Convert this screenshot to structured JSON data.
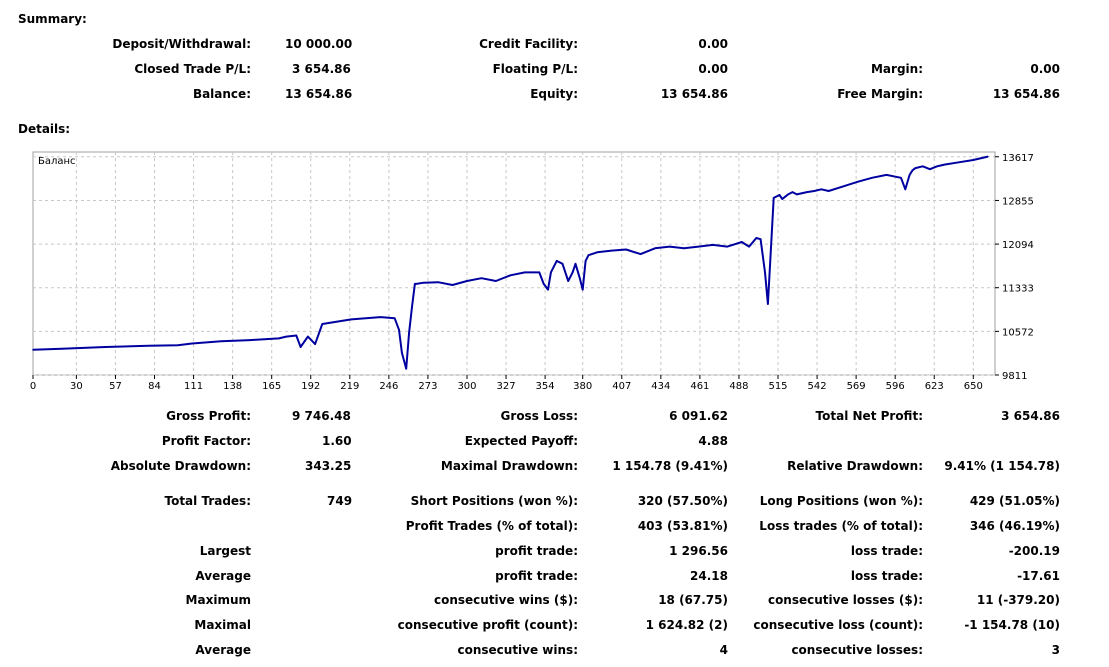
{
  "summary": {
    "heading": "Summary:",
    "deposit_label": "Deposit/Withdrawal:",
    "deposit_value": "10 000.00",
    "credit_label": "Credit Facility:",
    "credit_value": "0.00",
    "closed_pl_label": "Closed Trade P/L:",
    "closed_pl_value": "3 654.86",
    "floating_pl_label": "Floating P/L:",
    "floating_pl_value": "0.00",
    "margin_label": "Margin:",
    "margin_value": "0.00",
    "balance_label": "Balance:",
    "balance_value": "13 654.86",
    "equity_label": "Equity:",
    "equity_value": "13 654.86",
    "free_margin_label": "Free Margin:",
    "free_margin_value": "13 654.86"
  },
  "details": {
    "heading": "Details:",
    "gross_profit_label": "Gross Profit:",
    "gross_profit_value": "9 746.48",
    "gross_loss_label": "Gross Loss:",
    "gross_loss_value": "6 091.62",
    "total_net_profit_label": "Total Net Profit:",
    "total_net_profit_value": "3 654.86",
    "profit_factor_label": "Profit Factor:",
    "profit_factor_value": "1.60",
    "expected_payoff_label": "Expected Payoff:",
    "expected_payoff_value": "4.88",
    "absolute_drawdown_label": "Absolute Drawdown:",
    "absolute_drawdown_value": "343.25",
    "maximal_drawdown_label": "Maximal Drawdown:",
    "maximal_drawdown_value": "1 154.78 (9.41%)",
    "relative_drawdown_label": "Relative Drawdown:",
    "relative_drawdown_value": "9.41% (1 154.78)",
    "total_trades_label": "Total Trades:",
    "total_trades_value": "749",
    "short_positions_label": "Short Positions (won %):",
    "short_positions_value": "320 (57.50%)",
    "long_positions_label": "Long Positions (won %):",
    "long_positions_value": "429 (51.05%)",
    "profit_trades_label": "Profit Trades (% of total):",
    "profit_trades_value": "403 (53.81%)",
    "loss_trades_label": "Loss trades (% of total):",
    "loss_trades_value": "346 (46.19%)",
    "rows": [
      {
        "group": "Largest",
        "p_label": "profit trade:",
        "p_value": "1 296.56",
        "l_label": "loss trade:",
        "l_value": "-200.19"
      },
      {
        "group": "Average",
        "p_label": "profit trade:",
        "p_value": "24.18",
        "l_label": "loss trade:",
        "l_value": "-17.61"
      },
      {
        "group": "Maximum",
        "p_label": "consecutive wins ($):",
        "p_value": "18 (67.75)",
        "l_label": "consecutive losses ($):",
        "l_value": "11 (-379.20)"
      },
      {
        "group": "Maximal",
        "p_label": "consecutive profit (count):",
        "p_value": "1 624.82 (2)",
        "l_label": "consecutive loss (count):",
        "l_value": "-1 154.78 (10)"
      },
      {
        "group": "Average",
        "p_label": "consecutive wins:",
        "p_value": "4",
        "l_label": "consecutive losses:",
        "l_value": "3"
      }
    ]
  },
  "chart_data": {
    "type": "line",
    "title": "Баланс",
    "xlabel": "",
    "ylabel": "",
    "xlim": [
      0,
      665
    ],
    "ylim": [
      9811,
      13700
    ],
    "x_ticks": [
      0,
      30,
      57,
      84,
      111,
      138,
      165,
      192,
      219,
      246,
      273,
      300,
      327,
      354,
      380,
      407,
      434,
      461,
      488,
      515,
      542,
      569,
      596,
      623,
      650
    ],
    "y_ticks": [
      9811,
      10572,
      11333,
      12094,
      12855,
      13617
    ],
    "grid": true,
    "line_color": "#0000a0",
    "series": [
      {
        "x": [
          0,
          20,
          50,
          80,
          100,
          110,
          130,
          150,
          170,
          175,
          182,
          185,
          190,
          195,
          200,
          220,
          240,
          250,
          253,
          255,
          258,
          260,
          262,
          264,
          265,
          270,
          280,
          290,
          300,
          310,
          320,
          330,
          340,
          350,
          353,
          356,
          358,
          362,
          366,
          370,
          373,
          375,
          378,
          380,
          382,
          384,
          390,
          400,
          410,
          420,
          430,
          440,
          450,
          460,
          470,
          480,
          490,
          495,
          500,
          503,
          506,
          508,
          512,
          516,
          518,
          520,
          522,
          525,
          528,
          535,
          540,
          545,
          550,
          560,
          570,
          580,
          590,
          600,
          603,
          606,
          608,
          610,
          615,
          620,
          625,
          630,
          640,
          650,
          660
        ],
        "y": [
          10250,
          10270,
          10300,
          10320,
          10330,
          10360,
          10400,
          10420,
          10450,
          10480,
          10500,
          10300,
          10480,
          10350,
          10700,
          10780,
          10820,
          10800,
          10600,
          10200,
          9920,
          10550,
          11000,
          11400,
          11400,
          11420,
          11430,
          11380,
          11450,
          11500,
          11450,
          11550,
          11600,
          11600,
          11400,
          11300,
          11600,
          11800,
          11750,
          11450,
          11600,
          11750,
          11500,
          11300,
          11800,
          11900,
          11950,
          11980,
          12000,
          11920,
          12020,
          12050,
          12020,
          12050,
          12080,
          12050,
          12130,
          12050,
          12200,
          12180,
          11600,
          11050,
          12900,
          12950,
          12880,
          12920,
          12960,
          13000,
          12960,
          13000,
          13020,
          13050,
          13020,
          13100,
          13180,
          13250,
          13300,
          13250,
          13050,
          13300,
          13380,
          13420,
          13450,
          13400,
          13450,
          13480,
          13520,
          13560,
          13620
        ]
      }
    ]
  }
}
